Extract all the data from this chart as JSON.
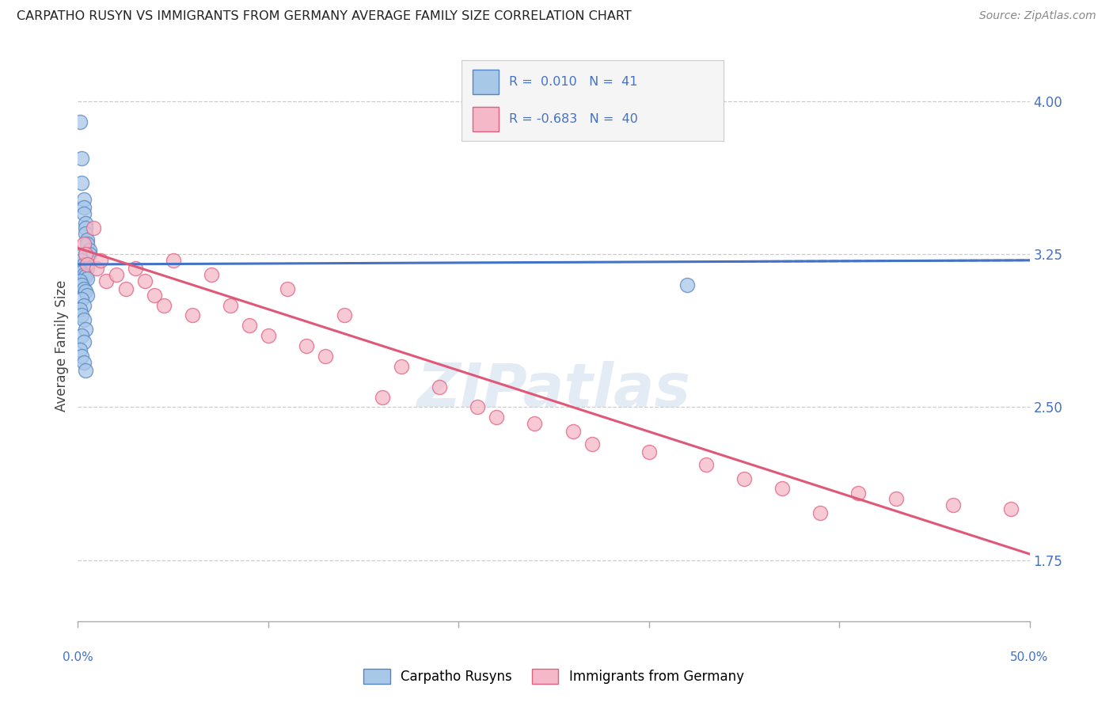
{
  "title": "CARPATHO RUSYN VS IMMIGRANTS FROM GERMANY AVERAGE FAMILY SIZE CORRELATION CHART",
  "source": "Source: ZipAtlas.com",
  "ylabel": "Average Family Size",
  "xlim": [
    0.0,
    0.5
  ],
  "ylim": [
    1.45,
    4.15
  ],
  "yticks_right": [
    1.75,
    2.5,
    3.25,
    4.0
  ],
  "background_color": "#ffffff",
  "grid_color": "#cccccc",
  "blue_fill": "#a8c8e8",
  "pink_fill": "#f5b8c8",
  "blue_edge": "#5585c5",
  "pink_edge": "#e06080",
  "blue_line": "#4472c4",
  "pink_line": "#e05878",
  "legend_label1": "Carpatho Rusyns",
  "legend_label2": "Immigrants from Germany",
  "watermark": "ZIPatlas",
  "blue_scatter_x": [
    0.001,
    0.002,
    0.002,
    0.003,
    0.003,
    0.003,
    0.004,
    0.004,
    0.004,
    0.005,
    0.005,
    0.006,
    0.006,
    0.001,
    0.002,
    0.003,
    0.004,
    0.005,
    0.001,
    0.002,
    0.003,
    0.004,
    0.005,
    0.001,
    0.002,
    0.003,
    0.004,
    0.005,
    0.002,
    0.003,
    0.001,
    0.002,
    0.003,
    0.004,
    0.002,
    0.003,
    0.001,
    0.002,
    0.003,
    0.004,
    0.32
  ],
  "blue_scatter_y": [
    3.9,
    3.72,
    3.6,
    3.52,
    3.48,
    3.45,
    3.4,
    3.38,
    3.35,
    3.32,
    3.3,
    3.27,
    3.25,
    3.24,
    3.22,
    3.2,
    3.19,
    3.18,
    3.17,
    3.16,
    3.15,
    3.14,
    3.13,
    3.12,
    3.1,
    3.08,
    3.07,
    3.05,
    3.03,
    3.0,
    2.98,
    2.95,
    2.93,
    2.88,
    2.85,
    2.82,
    2.78,
    2.75,
    2.72,
    2.68,
    3.1
  ],
  "pink_scatter_x": [
    0.003,
    0.004,
    0.005,
    0.008,
    0.01,
    0.012,
    0.015,
    0.02,
    0.025,
    0.03,
    0.035,
    0.04,
    0.045,
    0.05,
    0.06,
    0.07,
    0.08,
    0.09,
    0.1,
    0.11,
    0.12,
    0.13,
    0.14,
    0.16,
    0.17,
    0.19,
    0.21,
    0.22,
    0.24,
    0.26,
    0.27,
    0.3,
    0.33,
    0.35,
    0.37,
    0.39,
    0.41,
    0.43,
    0.46,
    0.49
  ],
  "pink_scatter_y": [
    3.3,
    3.25,
    3.2,
    3.38,
    3.18,
    3.22,
    3.12,
    3.15,
    3.08,
    3.18,
    3.12,
    3.05,
    3.0,
    3.22,
    2.95,
    3.15,
    3.0,
    2.9,
    2.85,
    3.08,
    2.8,
    2.75,
    2.95,
    2.55,
    2.7,
    2.6,
    2.5,
    2.45,
    2.42,
    2.38,
    2.32,
    2.28,
    2.22,
    2.15,
    2.1,
    1.98,
    2.08,
    2.05,
    2.02,
    2.0
  ],
  "blue_trend_y0": 3.2,
  "blue_trend_y1": 3.22,
  "pink_trend_y0": 3.28,
  "pink_trend_y1": 1.78
}
